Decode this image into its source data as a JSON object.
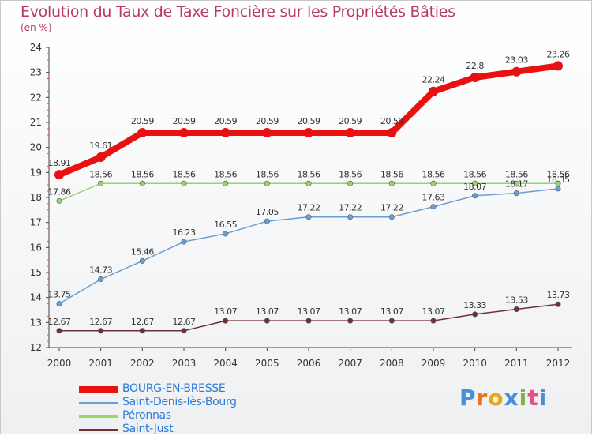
{
  "header": {
    "title": "Evolution du Taux de Taxe Foncière sur les Propriétés Bâties",
    "subtitle": "(en %)"
  },
  "logo": {
    "letters": [
      "P",
      "r",
      "o",
      "x",
      "i",
      "t",
      "i"
    ],
    "colors": [
      "#4a8fd6",
      "#e87722",
      "#e8a617",
      "#4a8fd6",
      "#7cb342",
      "#e84f8a",
      "#4a8fd6"
    ]
  },
  "chart_data": {
    "type": "line",
    "x": [
      "2000",
      "2001",
      "2002",
      "2003",
      "2004",
      "2005",
      "2006",
      "2007",
      "2008",
      "2009",
      "2010",
      "2011",
      "2012"
    ],
    "ylim": [
      12,
      24
    ],
    "yticks": [
      "12",
      "13",
      "14",
      "15",
      "16",
      "17",
      "18",
      "19",
      "20",
      "21",
      "22",
      "23",
      "24"
    ],
    "grid": false,
    "legend_position": "bottom-left",
    "series": [
      {
        "name": "Saint-Just",
        "color": "#722f37",
        "values": [
          12.67,
          12.67,
          12.67,
          12.67,
          13.07,
          13.07,
          13.07,
          13.07,
          13.07,
          13.07,
          13.33,
          13.53,
          13.73
        ],
        "labels": [
          "12.67",
          "12.67",
          "12.67",
          "12.67",
          "13.07",
          "13.07",
          "13.07",
          "13.07",
          "13.07",
          "13.07",
          "13.33",
          "13.53",
          "13.73"
        ]
      },
      {
        "name": "Saint-Denis-lès-Bourg",
        "color": "#6b9fd3",
        "values": [
          13.75,
          14.73,
          15.46,
          16.23,
          16.55,
          17.05,
          17.22,
          17.22,
          17.22,
          17.63,
          18.07,
          18.17,
          18.35
        ],
        "labels": [
          "13.75",
          "14.73",
          "15.46",
          "16.23",
          "16.55",
          "17.05",
          "17.22",
          "17.22",
          "17.22",
          "17.63",
          "18.07",
          "18.17",
          "18.35"
        ]
      },
      {
        "name": "Péronnas",
        "color": "#99d36b",
        "values": [
          17.86,
          18.56,
          18.56,
          18.56,
          18.56,
          18.56,
          18.56,
          18.56,
          18.56,
          18.56,
          18.56,
          18.56,
          18.56
        ],
        "labels": [
          "17.86",
          "18.56",
          "18.56",
          "18.56",
          "18.56",
          "18.56",
          "18.56",
          "18.56",
          "18.56",
          "18.56",
          "18.56",
          "18.56",
          "18.56"
        ]
      },
      {
        "name": "BOURG-EN-BRESSE",
        "color": "#e81010",
        "values": [
          18.91,
          19.61,
          20.59,
          20.59,
          20.59,
          20.59,
          20.59,
          20.59,
          20.59,
          22.24,
          22.8,
          23.03,
          23.26
        ],
        "labels": [
          "18.91",
          "19.61",
          "20.59",
          "20.59",
          "20.59",
          "20.59",
          "20.59",
          "20.59",
          "20.59",
          "22.24",
          "22.8",
          "23.03",
          "23.26"
        ]
      }
    ]
  },
  "legend": {
    "items": [
      {
        "label": "BOURG-EN-BRESSE",
        "color": "#e81010"
      },
      {
        "label": "Saint-Denis-lès-Bourg",
        "color": "#6b9fd3"
      },
      {
        "label": "Péronnas",
        "color": "#99d36b"
      },
      {
        "label": "Saint-Just",
        "color": "#722f37"
      }
    ]
  }
}
